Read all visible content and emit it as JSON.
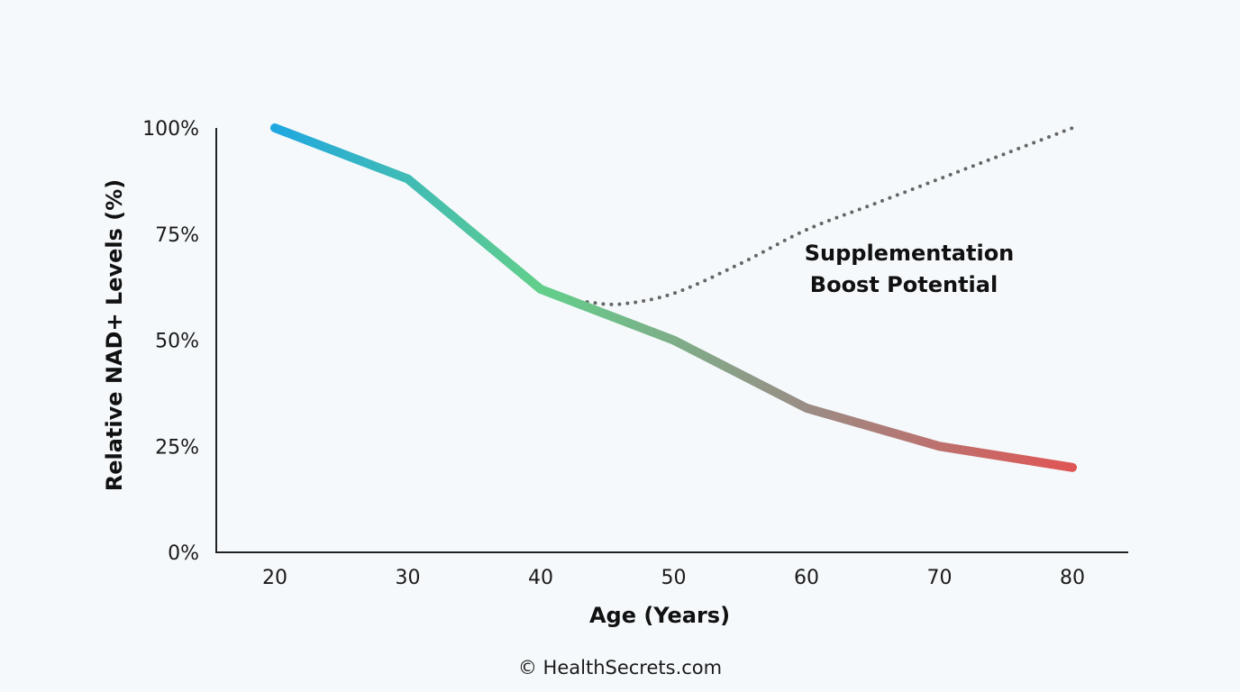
{
  "chart_data": {
    "type": "line",
    "title": "",
    "xlabel": "Age (Years)",
    "ylabel": "Relative NAD+ Levels (%)",
    "x": [
      20,
      30,
      40,
      50,
      60,
      70,
      80
    ],
    "xlim": [
      20,
      80
    ],
    "ylim": [
      0,
      100
    ],
    "yticks": [
      "0%",
      "25%",
      "50%",
      "75%",
      "100%"
    ],
    "ytick_values": [
      0,
      25,
      50,
      75,
      100
    ],
    "grid": false,
    "series": [
      {
        "name": "",
        "style": "solid-gradient",
        "gradient_colors": [
          "#1fa8e0",
          "#62cf8a",
          "#9a8c86",
          "#e05555"
        ],
        "x": [
          20,
          30,
          40,
          50,
          60,
          70,
          80
        ],
        "y": [
          100,
          88,
          62,
          50,
          34,
          25,
          20
        ]
      },
      {
        "name": "",
        "style": "dotted",
        "color": "#666666",
        "x": [
          43.5,
          46,
          50,
          55,
          60,
          65,
          70,
          75,
          80
        ],
        "y": [
          59,
          58.5,
          61,
          68,
          76,
          82,
          88,
          94,
          100
        ]
      }
    ],
    "annotations": [
      "Supplementation",
      "Boost Potential"
    ]
  },
  "footer": "© HealthSecrets.com"
}
